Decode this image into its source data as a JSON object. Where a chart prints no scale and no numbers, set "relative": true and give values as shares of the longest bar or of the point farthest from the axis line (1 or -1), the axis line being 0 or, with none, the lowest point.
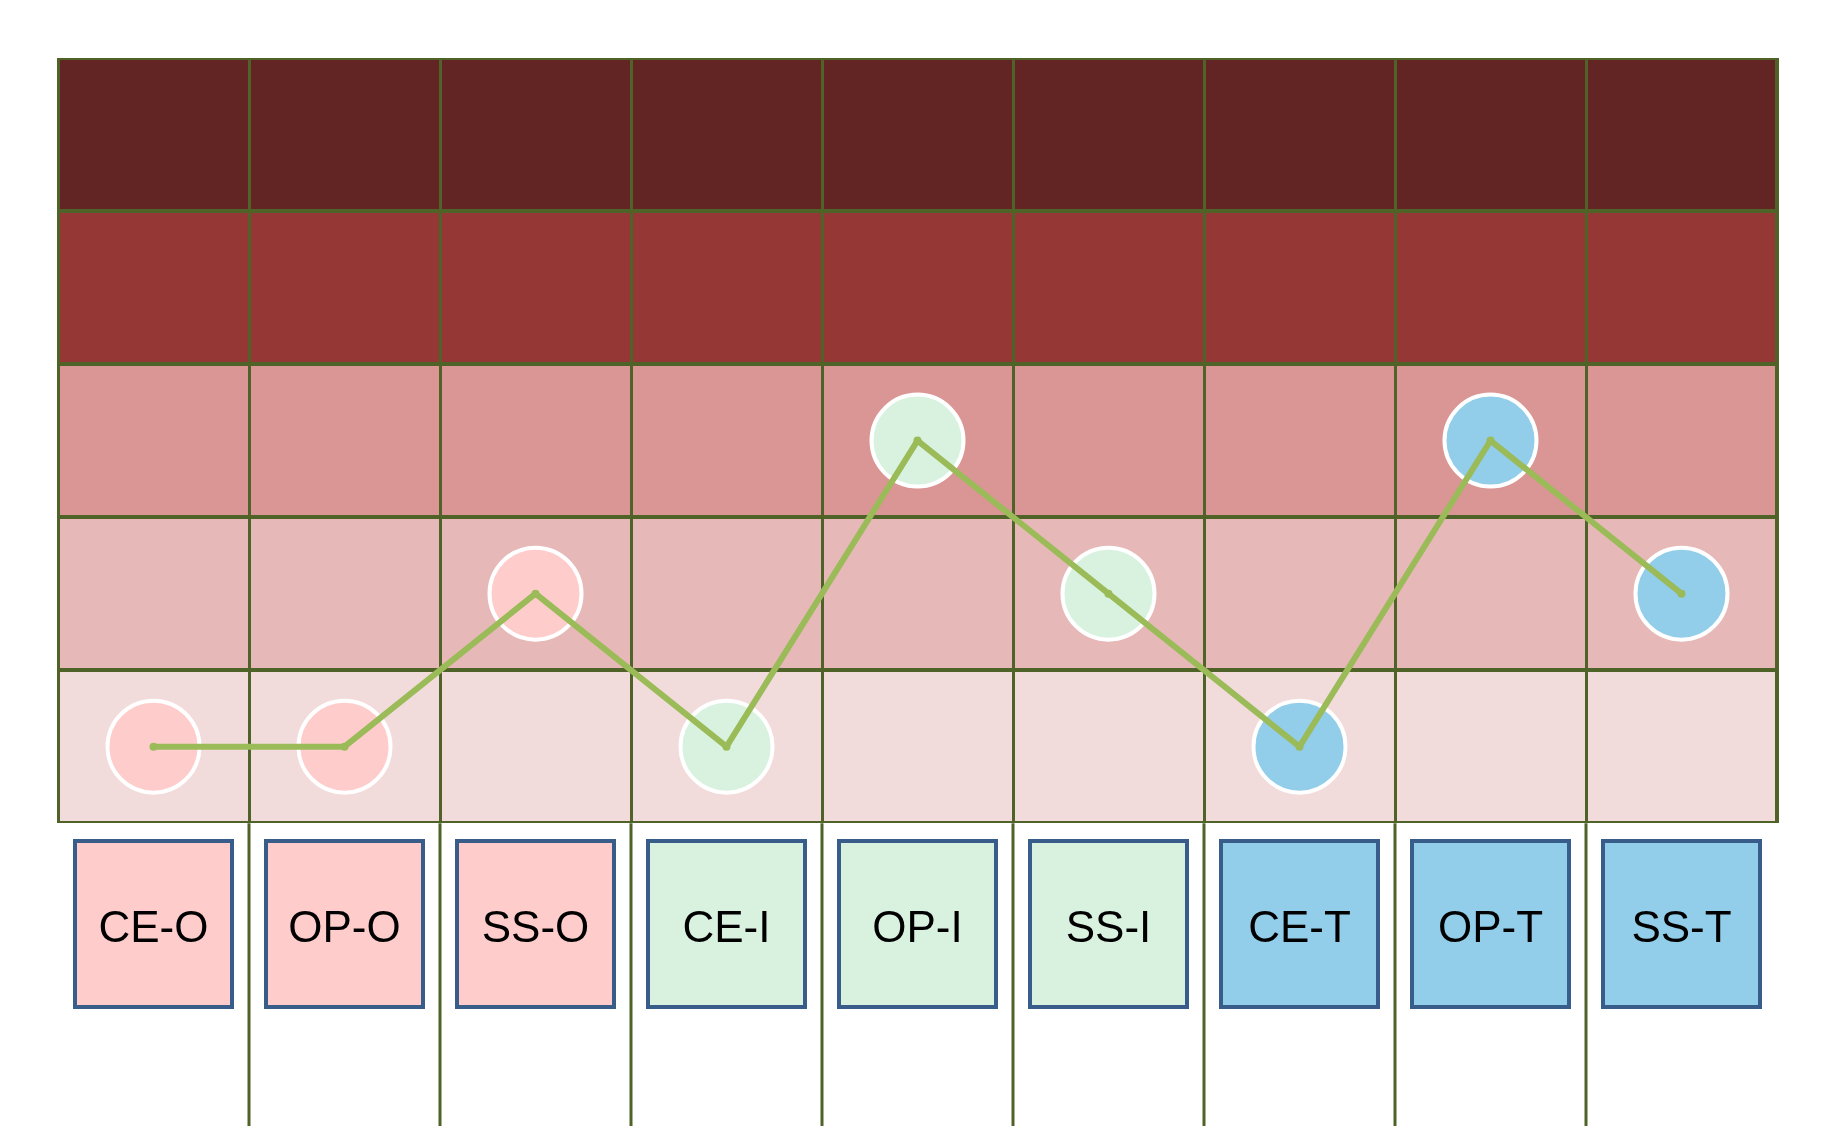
{
  "chart_data": {
    "type": "line",
    "relative": true,
    "categories": [
      "CE-O",
      "OP-O",
      "SS-O",
      "CE-I",
      "OP-I",
      "SS-I",
      "CE-T",
      "OP-T",
      "SS-T"
    ],
    "series": [
      {
        "color": "#9bbb59",
        "values": [
          0.2,
          0.2,
          0.6,
          0.2,
          1,
          0.6,
          0.2,
          1,
          0.6
        ]
      },
      {
        "type": "scatter",
        "color": "#ffcccc",
        "x": [
          "CE-O",
          "OP-O",
          "SS-O"
        ],
        "values": [
          0.2,
          0.2,
          0.6
        ]
      },
      {
        "type": "scatter",
        "color": "#d9f2e0",
        "x": [
          "CE-I",
          "OP-I",
          "SS-I"
        ],
        "values": [
          0.2,
          1,
          0.6
        ]
      },
      {
        "type": "scatter",
        "color": "#92cdea",
        "x": [
          "CE-T",
          "OP-T",
          "SS-T"
        ],
        "values": [
          0.2,
          1,
          0.6
        ]
      }
    ],
    "grid": "x",
    "legend": false,
    "marker": "circle",
    "line_style": "solid"
  }
}
